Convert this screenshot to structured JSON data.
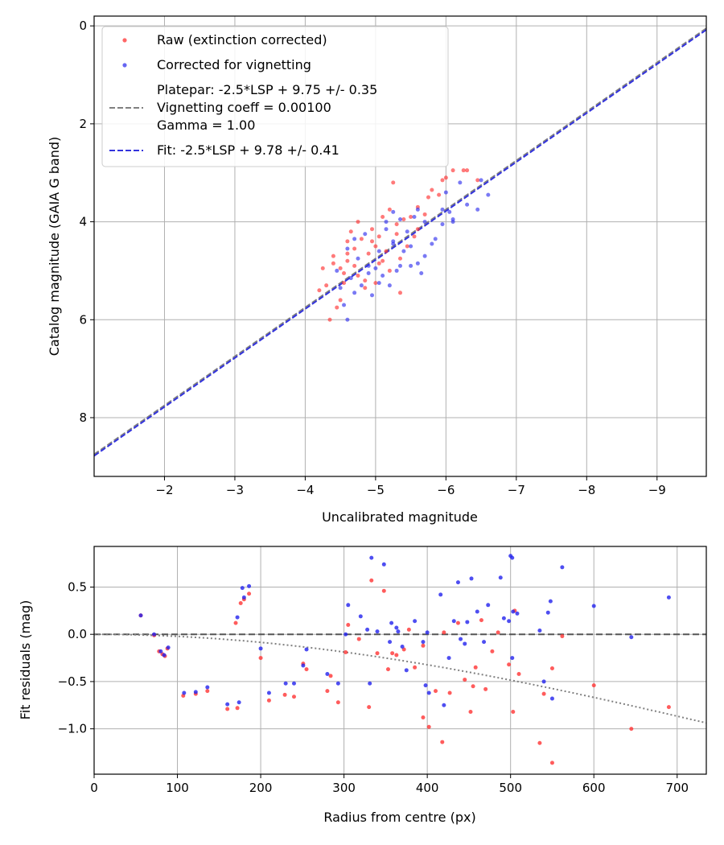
{
  "chart_data": [
    {
      "type": "scatter",
      "xlabel": "Uncalibrated magnitude",
      "ylabel": "Catalog magnitude (GAIA G band)",
      "xlim": [
        -1.0,
        -9.7
      ],
      "ylim": [
        9.2,
        -0.2
      ],
      "x_ticks": [
        -2,
        -3,
        -4,
        -5,
        -6,
        -7,
        -8,
        -9
      ],
      "x_tick_labels": [
        "−2",
        "−3",
        "−4",
        "−5",
        "−6",
        "−7",
        "−8",
        "−9"
      ],
      "y_ticks": [
        0,
        2,
        4,
        6,
        8
      ],
      "y_tick_labels": [
        "0",
        "2",
        "4",
        "6",
        "8"
      ],
      "grid": true,
      "legend": {
        "placement": "top-left",
        "entries": [
          {
            "label": "Raw (extinction corrected)"
          },
          {
            "label": "Corrected for vignetting"
          },
          {
            "label": "Platepar: -2.5*LSP + 9.75 +/- 0.35"
          },
          {
            "label": "Vignetting coeff = 0.00100"
          },
          {
            "label": "Gamma = 1.00"
          },
          {
            "label": "Fit: -2.5*LSP + 9.78 +/- 0.41"
          }
        ]
      },
      "lines": [
        {
          "name": "Platepar",
          "slope": 1,
          "intercept": 9.75,
          "color": "#808080",
          "style": "dashed"
        },
        {
          "name": "Fit",
          "slope": 1,
          "intercept": 9.78,
          "color": "#3333dd",
          "style": "dashed"
        }
      ],
      "series": [
        {
          "name": "Raw (extinction corrected)",
          "color": "#ff3333",
          "points": [
            [
              -4.35,
              6.0
            ],
            [
              -4.45,
              5.75
            ],
            [
              -4.5,
              5.6
            ],
            [
              -4.2,
              5.4
            ],
            [
              -4.3,
              5.3
            ],
            [
              -4.55,
              5.25
            ],
            [
              -4.25,
              4.95
            ],
            [
              -4.4,
              4.85
            ],
            [
              -4.6,
              4.8
            ],
            [
              -4.7,
              4.9
            ],
            [
              -4.75,
              5.1
            ],
            [
              -4.85,
              5.2
            ],
            [
              -4.9,
              4.65
            ],
            [
              -5.0,
              4.5
            ],
            [
              -5.05,
              4.3
            ],
            [
              -4.95,
              4.15
            ],
            [
              -4.65,
              4.2
            ],
            [
              -4.6,
              4.4
            ],
            [
              -4.75,
              4.0
            ],
            [
              -5.2,
              3.75
            ],
            [
              -5.4,
              3.95
            ],
            [
              -5.25,
              3.2
            ],
            [
              -5.5,
              3.9
            ],
            [
              -5.6,
              3.7
            ],
            [
              -5.75,
              3.5
            ],
            [
              -5.8,
              3.35
            ],
            [
              -5.95,
              3.15
            ],
            [
              -6.1,
              2.95
            ],
            [
              -6.25,
              2.95
            ],
            [
              -6.3,
              2.95
            ],
            [
              -6.45,
              3.15
            ],
            [
              -5.3,
              4.25
            ],
            [
              -5.45,
              4.5
            ],
            [
              -5.6,
              4.15
            ],
            [
              -5.1,
              4.8
            ],
            [
              -5.2,
              5.0
            ],
            [
              -5.0,
              5.25
            ],
            [
              -4.85,
              5.35
            ],
            [
              -4.55,
              5.05
            ],
            [
              -5.35,
              5.45
            ],
            [
              -4.7,
              4.55
            ],
            [
              -4.8,
              4.35
            ],
            [
              -4.4,
              4.7
            ],
            [
              -5.15,
              4.6
            ],
            [
              -5.3,
              4.05
            ],
            [
              -5.7,
              3.85
            ],
            [
              -5.9,
              3.45
            ],
            [
              -6.0,
              3.1
            ],
            [
              -4.5,
              4.95
            ],
            [
              -5.05,
              4.85
            ],
            [
              -5.35,
              4.75
            ],
            [
              -4.95,
              4.4
            ],
            [
              -4.6,
              4.65
            ],
            [
              -5.1,
              3.9
            ],
            [
              -5.55,
              4.3
            ]
          ]
        },
        {
          "name": "Corrected for vignetting",
          "color": "#3333ee",
          "points": [
            [
              -4.6,
              6.0
            ],
            [
              -4.55,
              5.7
            ],
            [
              -4.7,
              5.45
            ],
            [
              -4.5,
              5.35
            ],
            [
              -4.65,
              5.15
            ],
            [
              -4.8,
              5.3
            ],
            [
              -4.95,
              5.5
            ],
            [
              -5.05,
              5.25
            ],
            [
              -5.1,
              5.1
            ],
            [
              -5.3,
              5.0
            ],
            [
              -5.5,
              4.9
            ],
            [
              -5.6,
              4.85
            ],
            [
              -5.65,
              5.05
            ],
            [
              -5.8,
              4.45
            ],
            [
              -5.85,
              4.35
            ],
            [
              -5.95,
              4.05
            ],
            [
              -6.05,
              3.8
            ],
            [
              -6.1,
              4.0
            ],
            [
              -6.3,
              3.65
            ],
            [
              -6.5,
              3.15
            ],
            [
              -6.6,
              3.45
            ],
            [
              -6.45,
              3.75
            ],
            [
              -6.2,
              3.2
            ],
            [
              -5.7,
              4.0
            ],
            [
              -5.45,
              4.2
            ],
            [
              -5.4,
              4.6
            ],
            [
              -5.25,
              4.45
            ],
            [
              -5.05,
              4.6
            ],
            [
              -4.9,
              4.9
            ],
            [
              -4.75,
              4.75
            ],
            [
              -4.6,
              4.55
            ],
            [
              -4.85,
              4.25
            ],
            [
              -5.15,
              4.15
            ],
            [
              -5.35,
              3.95
            ],
            [
              -5.55,
              3.9
            ],
            [
              -5.25,
              3.8
            ],
            [
              -5.95,
              3.75
            ],
            [
              -6.0,
              3.4
            ],
            [
              -4.45,
              5.0
            ],
            [
              -5.0,
              4.95
            ],
            [
              -5.2,
              5.3
            ],
            [
              -5.35,
              4.9
            ],
            [
              -4.7,
              4.35
            ],
            [
              -5.7,
              4.7
            ],
            [
              -5.15,
              4.0
            ],
            [
              -5.5,
              4.5
            ],
            [
              -6.1,
              3.95
            ],
            [
              -4.9,
              5.05
            ],
            [
              -5.6,
              3.75
            ],
            [
              -5.25,
              4.4
            ]
          ]
        }
      ]
    },
    {
      "type": "scatter",
      "xlabel": "Radius from centre (px)",
      "ylabel": "Fit residuals (mag)",
      "xlim": [
        0,
        735
      ],
      "ylim": [
        -1.48,
        0.93
      ],
      "x_ticks": [
        0,
        100,
        200,
        300,
        400,
        500,
        600,
        700
      ],
      "x_tick_labels": [
        "0",
        "100",
        "200",
        "300",
        "400",
        "500",
        "600",
        "700"
      ],
      "y_ticks": [
        0.5,
        0.0,
        -0.5,
        -1.0
      ],
      "y_tick_labels": [
        "0.5",
        "0.0",
        "−0.5",
        "−1.0"
      ],
      "grid": true,
      "zero_line": {
        "y": 0,
        "color": "#555555",
        "style": "dashed"
      },
      "vignetting_curve": {
        "coeff": 0.001,
        "color": "#808080",
        "style": "dotted"
      },
      "series": [
        {
          "name": "Raw (extinction corrected)",
          "color": "#ff3333",
          "points": [
            [
              56,
              0.2
            ],
            [
              72,
              -0.01
            ],
            [
              78,
              -0.18
            ],
            [
              82,
              -0.21
            ],
            [
              85,
              -0.23
            ],
            [
              88,
              -0.15
            ],
            [
              107,
              -0.65
            ],
            [
              122,
              -0.63
            ],
            [
              136,
              -0.6
            ],
            [
              160,
              -0.79
            ],
            [
              170,
              0.12
            ],
            [
              172,
              -0.78
            ],
            [
              176,
              0.33
            ],
            [
              180,
              0.37
            ],
            [
              186,
              0.43
            ],
            [
              200,
              -0.25
            ],
            [
              210,
              -0.7
            ],
            [
              229,
              -0.64
            ],
            [
              240,
              -0.66
            ],
            [
              251,
              -0.31
            ],
            [
              255,
              -0.37
            ],
            [
              280,
              -0.6
            ],
            [
              284,
              -0.44
            ],
            [
              293,
              -0.72
            ],
            [
              302,
              -0.19
            ],
            [
              305,
              0.1
            ],
            [
              318,
              -0.05
            ],
            [
              330,
              -0.77
            ],
            [
              333,
              0.57
            ],
            [
              348,
              0.46
            ],
            [
              353,
              -0.37
            ],
            [
              358,
              -0.2
            ],
            [
              363,
              -0.22
            ],
            [
              372,
              -0.16
            ],
            [
              378,
              0.05
            ],
            [
              385,
              -0.35
            ],
            [
              395,
              -0.88
            ],
            [
              402,
              -0.98
            ],
            [
              410,
              -0.6
            ],
            [
              418,
              -1.14
            ],
            [
              420,
              0.02
            ],
            [
              427,
              -0.62
            ],
            [
              437,
              0.12
            ],
            [
              445,
              -0.48
            ],
            [
              452,
              -0.82
            ],
            [
              458,
              -0.35
            ],
            [
              465,
              0.15
            ],
            [
              470,
              -0.58
            ],
            [
              478,
              -0.18
            ],
            [
              485,
              0.02
            ],
            [
              498,
              -0.32
            ],
            [
              503,
              -0.82
            ],
            [
              505,
              0.25
            ],
            [
              510,
              -0.42
            ],
            [
              535,
              -1.15
            ],
            [
              540,
              -0.63
            ],
            [
              550,
              -1.36
            ],
            [
              550,
              -0.36
            ],
            [
              562,
              -0.02
            ],
            [
              600,
              -0.54
            ],
            [
              645,
              -1.0
            ],
            [
              690,
              -0.77
            ],
            [
              340,
              -0.2
            ],
            [
              455,
              -0.55
            ],
            [
              395,
              -0.12
            ]
          ]
        },
        {
          "name": "Corrected for vignetting",
          "color": "#2222ee",
          "points": [
            [
              56,
              0.2
            ],
            [
              72,
              0.0
            ],
            [
              80,
              -0.18
            ],
            [
              84,
              -0.22
            ],
            [
              89,
              -0.14
            ],
            [
              108,
              -0.62
            ],
            [
              122,
              -0.61
            ],
            [
              136,
              -0.56
            ],
            [
              160,
              -0.74
            ],
            [
              172,
              0.18
            ],
            [
              174,
              -0.72
            ],
            [
              178,
              0.49
            ],
            [
              180,
              0.39
            ],
            [
              186,
              0.51
            ],
            [
              200,
              -0.15
            ],
            [
              210,
              -0.62
            ],
            [
              230,
              -0.52
            ],
            [
              240,
              -0.52
            ],
            [
              251,
              -0.33
            ],
            [
              255,
              -0.16
            ],
            [
              280,
              -0.42
            ],
            [
              293,
              -0.52
            ],
            [
              302,
              0.0
            ],
            [
              305,
              0.31
            ],
            [
              320,
              0.19
            ],
            [
              328,
              0.05
            ],
            [
              331,
              -0.52
            ],
            [
              333,
              0.81
            ],
            [
              340,
              0.03
            ],
            [
              348,
              0.74
            ],
            [
              355,
              -0.08
            ],
            [
              357,
              0.12
            ],
            [
              363,
              0.07
            ],
            [
              365,
              0.03
            ],
            [
              370,
              -0.13
            ],
            [
              375,
              -0.38
            ],
            [
              385,
              0.14
            ],
            [
              395,
              -0.08
            ],
            [
              398,
              -0.54
            ],
            [
              402,
              -0.62
            ],
            [
              416,
              0.42
            ],
            [
              420,
              -0.75
            ],
            [
              432,
              0.14
            ],
            [
              437,
              0.55
            ],
            [
              440,
              -0.05
            ],
            [
              448,
              0.13
            ],
            [
              453,
              0.59
            ],
            [
              460,
              0.24
            ],
            [
              468,
              -0.08
            ],
            [
              473,
              0.31
            ],
            [
              488,
              0.6
            ],
            [
              492,
              0.17
            ],
            [
              498,
              0.14
            ],
            [
              500,
              0.83
            ],
            [
              502,
              0.81
            ],
            [
              503,
              0.24
            ],
            [
              508,
              0.22
            ],
            [
              535,
              0.04
            ],
            [
              540,
              -0.5
            ],
            [
              545,
              0.23
            ],
            [
              548,
              0.35
            ],
            [
              550,
              -0.68
            ],
            [
              562,
              0.71
            ],
            [
              600,
              0.3
            ],
            [
              645,
              -0.03
            ],
            [
              690,
              0.39
            ],
            [
              400,
              0.02
            ],
            [
              426,
              -0.25
            ],
            [
              502,
              -0.25
            ],
            [
              445,
              -0.1
            ]
          ]
        }
      ]
    }
  ]
}
